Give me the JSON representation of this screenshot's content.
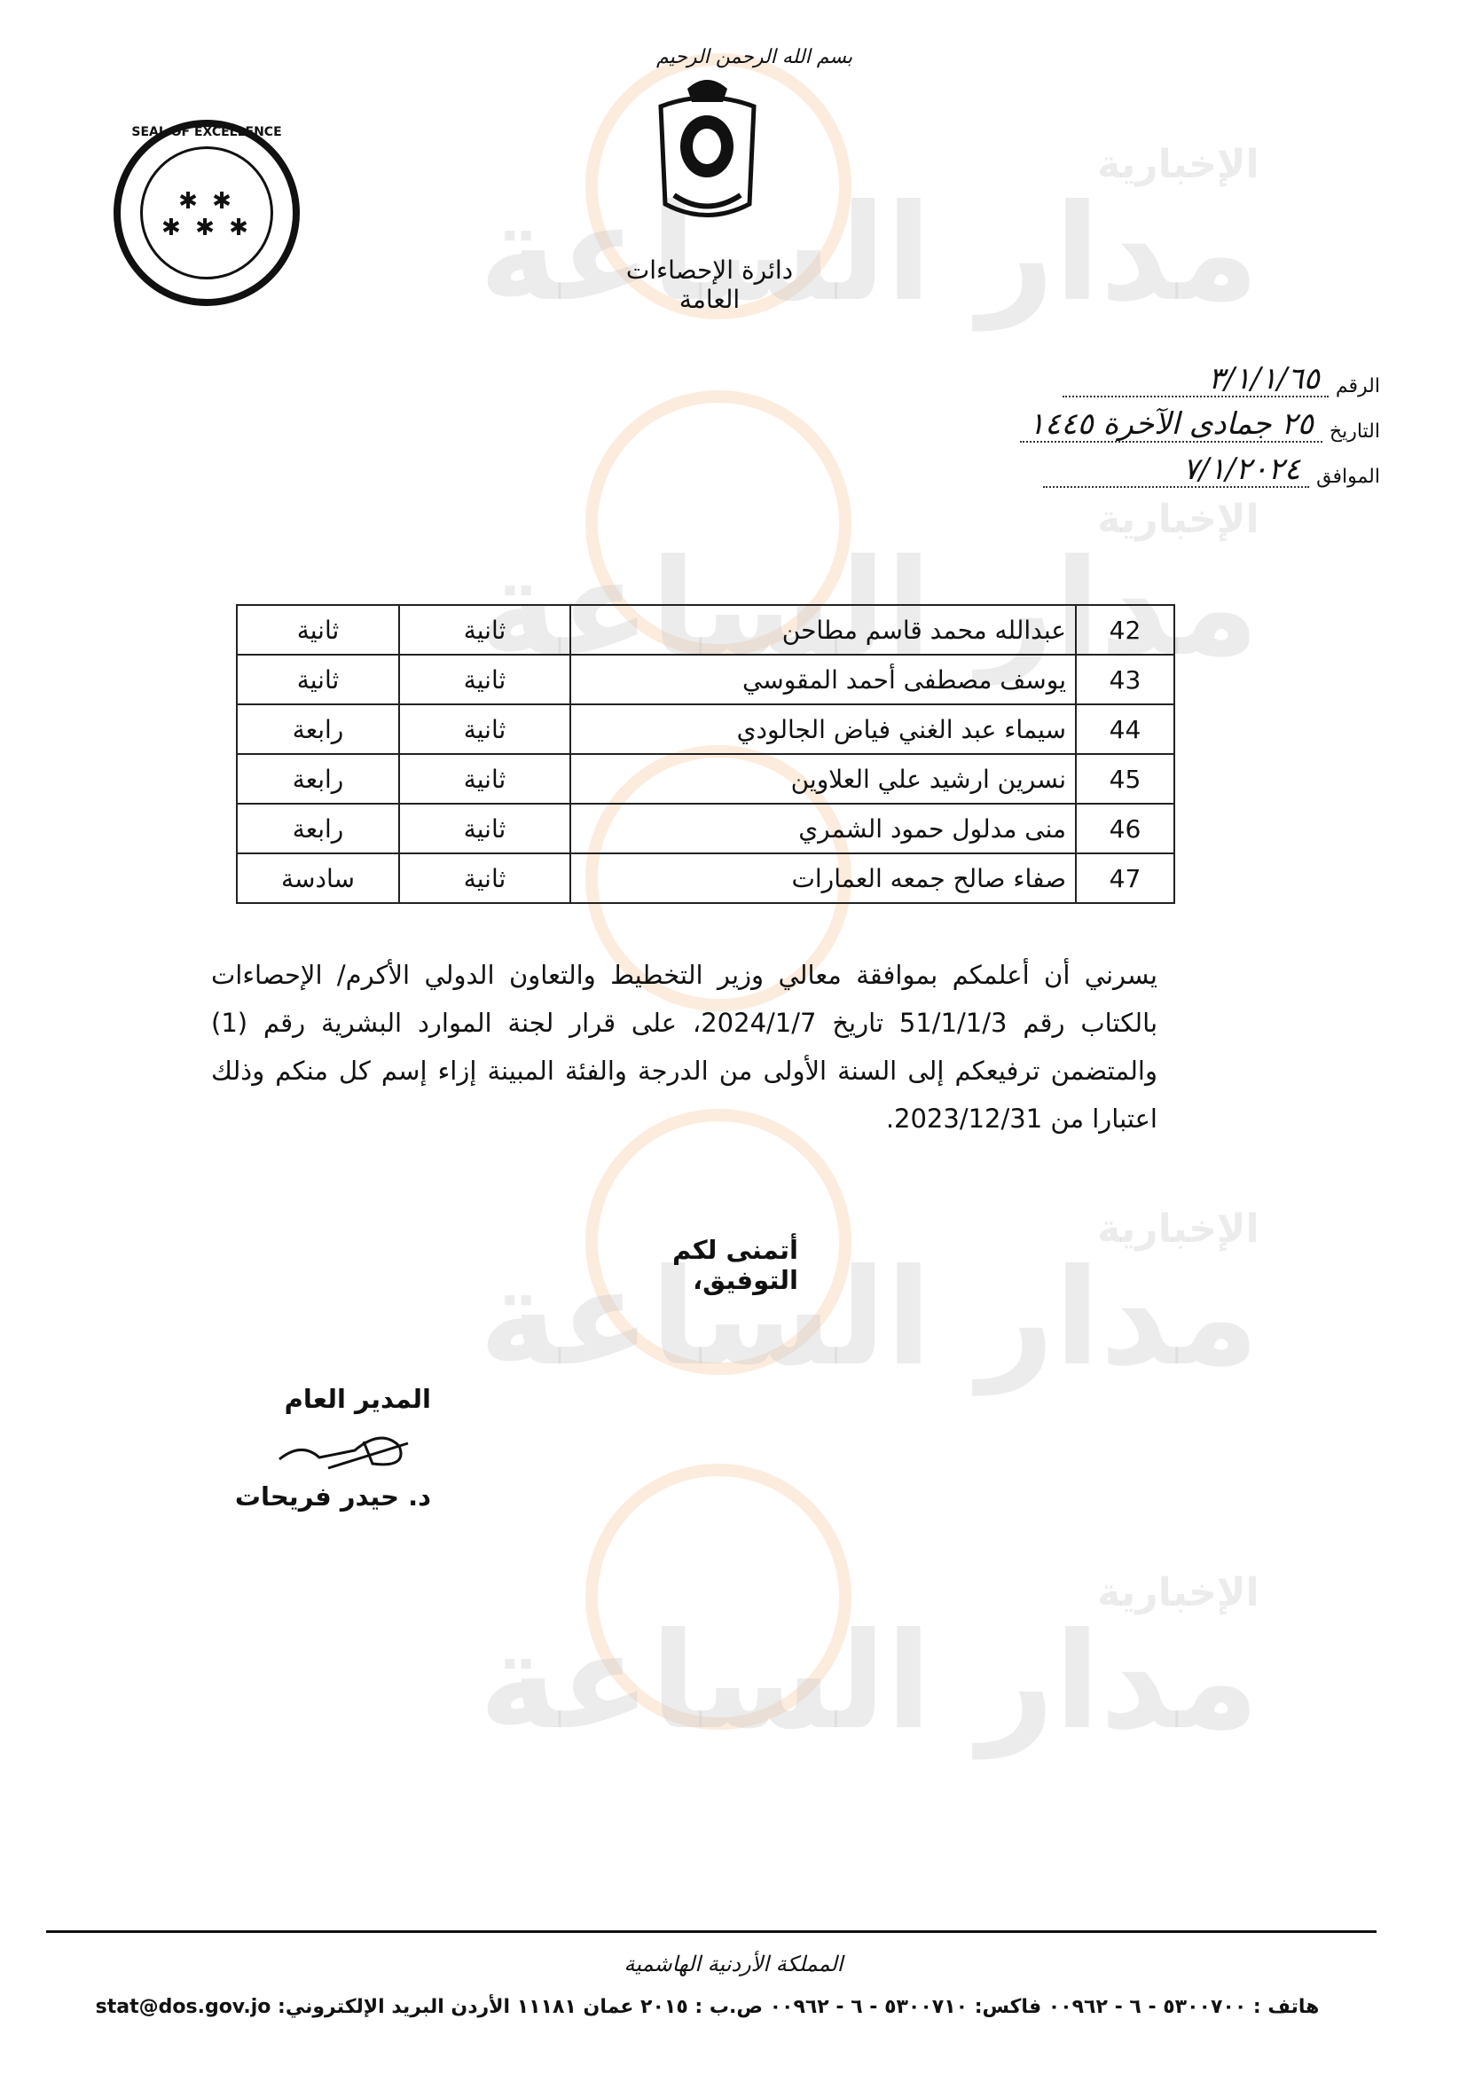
{
  "header": {
    "basmala": "بسم الله الرحمن الرحيم",
    "department": "دائرة الإحصاءات العامة",
    "seal_text": "SEAL OF EXCELLENCE"
  },
  "meta": {
    "number_label": "الرقم",
    "number_value": "٣/١/١/٦٥",
    "date_label": "التاريخ",
    "date_value": "٢٥ جمادى الآخرة ١٤٤٥",
    "corresponding_label": "الموافق",
    "corresponding_value": "٧/١/٢٠٢٤"
  },
  "table": {
    "rows": [
      {
        "no": "42",
        "name": "عبدالله محمد قاسم مطاحن",
        "grade": "ثانية",
        "category": "ثانية"
      },
      {
        "no": "43",
        "name": "يوسف مصطفى أحمد المقوسي",
        "grade": "ثانية",
        "category": "ثانية"
      },
      {
        "no": "44",
        "name": "سيماء عبد الغني فياض الجالودي",
        "grade": "ثانية",
        "category": "رابعة"
      },
      {
        "no": "45",
        "name": "نسرين ارشيد علي العلاوين",
        "grade": "ثانية",
        "category": "رابعة"
      },
      {
        "no": "46",
        "name": "منى مدلول حمود الشمري",
        "grade": "ثانية",
        "category": "رابعة"
      },
      {
        "no": "47",
        "name": "صفاء صالح جمعه العمارات",
        "grade": "ثانية",
        "category": "سادسة"
      }
    ]
  },
  "body": {
    "paragraph": "يسرني أن أعلمكم بموافقة معالي وزير التخطيط والتعاون الدولي الأكرم/ الإحصاءات بالكتاب رقم 51/1/1/3 تاريخ 2024/1/7، على قرار لجنة الموارد البشرية رقم (1) والمتضمن ترفيعكم إلى السنة الأولى من الدرجة والفئة المبينة إزاء إسم كل منكم وذلك اعتبارا من 2023/12/31.",
    "closing": "أتمنى لكم التوفيق،"
  },
  "signature": {
    "title": "المدير العام",
    "name": "د. حيدر فريحات"
  },
  "footer": {
    "kingdom": "المملكة الأردنية الهاشمية",
    "contact": "هاتف : ٥٣٠٠٧٠٠ - ٦ - ٠٠٩٦٢ فاكس: ٥٣٠٠٧١٠ - ٦ - ٠٠٩٦٢ ص.ب : ٢٠١٥ عمان ١١١٨١ الأردن البريد الإلكتروني: stat@dos.gov.jo"
  },
  "watermark": {
    "text": "مدار الساعة",
    "sub": "الإخبارية"
  }
}
